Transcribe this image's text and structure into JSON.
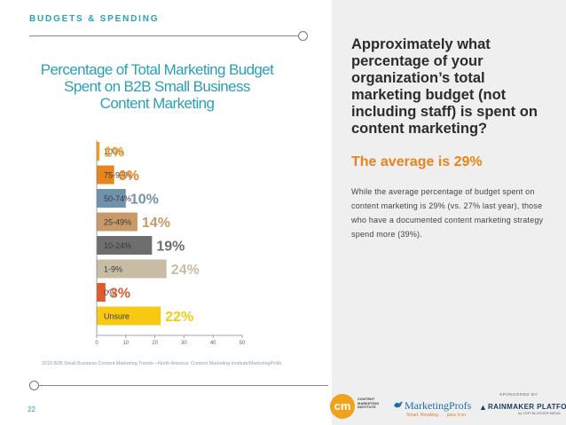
{
  "header": {
    "section_title": "BUDGETS & SPENDING",
    "page_number": "22"
  },
  "chart_data": {
    "type": "bar",
    "orientation": "horizontal",
    "title": "Percentage of Total Marketing Budget Spent on B2B Small Business Content Marketing",
    "title_lines": [
      "Percentage of Total Marketing Budget",
      "Spent on B2B Small Business",
      "Content Marketing"
    ],
    "categories": [
      "100%",
      "75-99%",
      "50-74%",
      "25-49%",
      "10-24%",
      "1-9%",
      "0%",
      "Unsure"
    ],
    "values": [
      1,
      6,
      10,
      14,
      19,
      24,
      3,
      22
    ],
    "value_labels": [
      "1%",
      "6%",
      "10%",
      "14%",
      "19%",
      "24%",
      "3%",
      "22%"
    ],
    "colors": [
      "#f0a21c",
      "#e8841c",
      "#6f92ad",
      "#c79a67",
      "#6e6e6e",
      "#c9bca4",
      "#e05a2a",
      "#f7c913"
    ],
    "xlim": [
      0,
      50
    ],
    "xticks": [
      "0",
      "10",
      "20",
      "30",
      "40",
      "50"
    ],
    "source": "2015 B2B Small Business Content Marketing Trends—North America: Content Marketing Institute/MarketingProfs"
  },
  "sidebar": {
    "question": "Approximately what percentage of your organization’s total marketing budget (not including staff) is spent on content marketing?",
    "average": "The average is 29%",
    "description": "While the average percentage of budget spent on content marketing is 29% (vs. 27% last year), those who have a documented content marketing strategy spend more (39%)."
  },
  "footer": {
    "cmi_logo": "cm",
    "cmi_text_lines": [
      "CONTENT",
      "MARKETING",
      "INSTITUTE"
    ],
    "marketingprofs": "MarketingProfs",
    "marketingprofs_tagline": "Smart. Breaking . . . pass it on.",
    "sponsored_by": "SPONSORED BY",
    "rainmaker": "RAINMAKER PLATFORM",
    "rainmaker_sub": "by COPYBLOGGER MEDIA"
  }
}
